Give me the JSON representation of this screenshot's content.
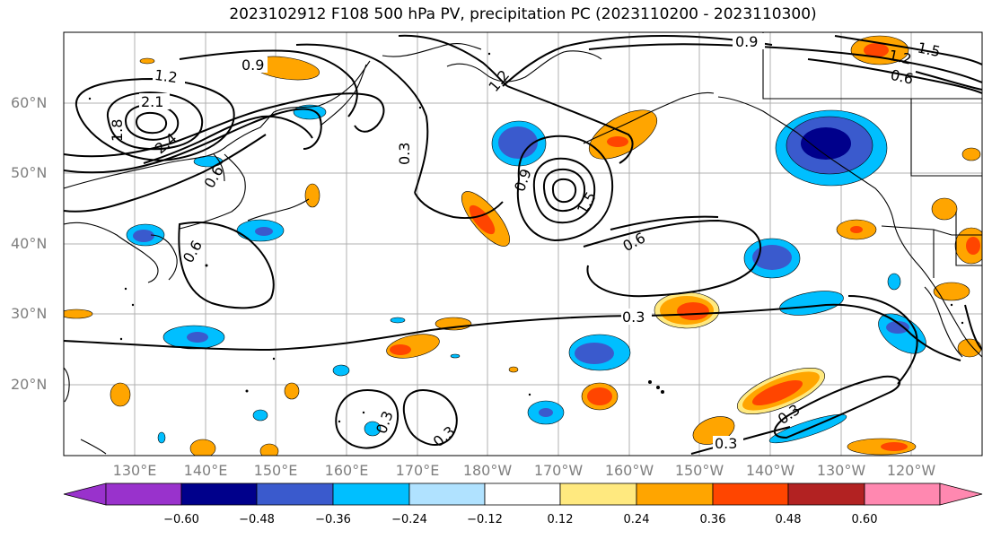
{
  "title": "2023102912 F108 500 hPa PV, precipitation PC (2023110200 - 2023110300)",
  "latitude_labels": [
    "60°N",
    "50°N",
    "40°N",
    "30°N",
    "20°N"
  ],
  "longitude_labels": [
    "130°E",
    "140°E",
    "150°E",
    "160°E",
    "170°E",
    "180°W",
    "170°W",
    "160°W",
    "150°W",
    "140°W",
    "130°W",
    "120°W"
  ],
  "colorbar": {
    "ticks": [
      "−0.60",
      "−0.48",
      "−0.36",
      "−0.24",
      "−0.12",
      "0.12",
      "0.24",
      "0.36",
      "0.48",
      "0.60"
    ],
    "colors": [
      "#9932cc",
      "#00008b",
      "#3a5acd",
      "#00bfff",
      "#b0e2ff",
      "#ffffff",
      "#ffe97f",
      "#ffa500",
      "#ff4500",
      "#b22222",
      "#ff88b0"
    ]
  },
  "contour_labels": [
    "0.9",
    "1.2",
    "2.1",
    "1.8",
    "2.4",
    "0.6",
    "0.3",
    "1.2",
    "0.9",
    "1.5",
    "0.6",
    "0.6",
    "0.9",
    "1.2",
    "1.5",
    "0.6",
    "0.3",
    "0.3",
    "0.3",
    "0.3",
    "0.3"
  ]
}
